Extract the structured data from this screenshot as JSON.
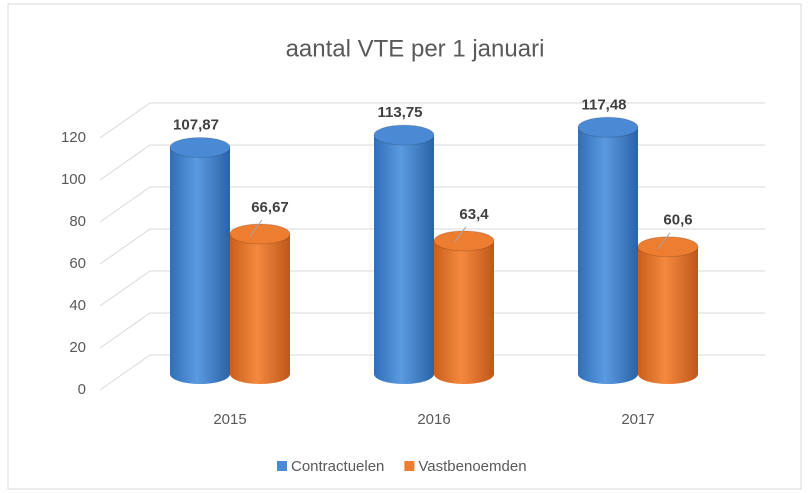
{
  "chart_data": {
    "type": "bar3d",
    "title": "aantal VTE per 1 januari",
    "categories": [
      "2015",
      "2016",
      "2017"
    ],
    "series": [
      {
        "name": "Contractuelen",
        "color": "#4a8ad4",
        "values": [
          107.87,
          113.75,
          117.48
        ],
        "value_labels": [
          "107,87",
          "113,75",
          "117,48"
        ]
      },
      {
        "name": "Vastbenoemden",
        "color": "#ed7d31",
        "values": [
          66.67,
          63.4,
          60.6
        ],
        "value_labels": [
          "66,67",
          "63,4",
          "60,6"
        ]
      }
    ],
    "ylim": [
      0,
      120
    ],
    "yticks": [
      0,
      20,
      40,
      60,
      80,
      100,
      120
    ],
    "grid": true,
    "legend": "bottom"
  }
}
